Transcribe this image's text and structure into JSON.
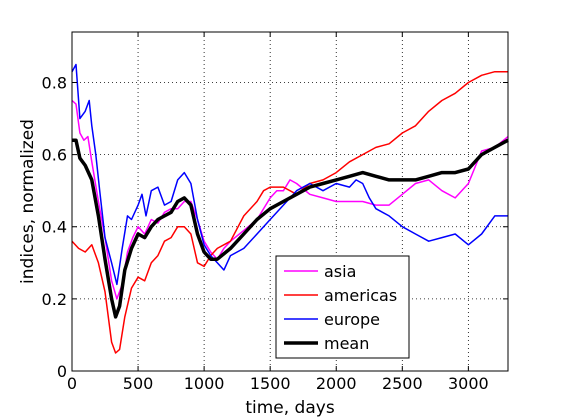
{
  "chart_data": {
    "type": "line",
    "title": "",
    "xlabel": "time, days",
    "ylabel": "indices, normalized",
    "xlim": [
      0,
      3300
    ],
    "ylim": [
      0,
      0.94
    ],
    "xticks": [
      0,
      500,
      1000,
      1500,
      2000,
      2500,
      3000
    ],
    "yticks": [
      0,
      0.2,
      0.4,
      0.6,
      0.8
    ],
    "ytick_labels": [
      "0",
      "0.2",
      "0.4",
      "0.6",
      "0.8"
    ],
    "grid": true,
    "grid_style": "dotted",
    "legend_position": "lower-right",
    "series": [
      {
        "name": "asia",
        "color": "#ff00ff",
        "x": [
          0,
          30,
          60,
          90,
          120,
          150,
          200,
          250,
          300,
          340,
          380,
          420,
          460,
          500,
          550,
          600,
          650,
          700,
          750,
          800,
          850,
          900,
          950,
          1000,
          1050,
          1100,
          1150,
          1200,
          1300,
          1400,
          1500,
          1550,
          1600,
          1650,
          1700,
          1800,
          1900,
          2000,
          2100,
          2200,
          2300,
          2400,
          2500,
          2600,
          2700,
          2800,
          2900,
          3000,
          3100,
          3200,
          3300
        ],
        "y": [
          0.75,
          0.74,
          0.66,
          0.64,
          0.65,
          0.58,
          0.47,
          0.37,
          0.25,
          0.2,
          0.24,
          0.33,
          0.37,
          0.4,
          0.38,
          0.42,
          0.41,
          0.44,
          0.45,
          0.45,
          0.47,
          0.47,
          0.42,
          0.36,
          0.33,
          0.31,
          0.34,
          0.36,
          0.39,
          0.42,
          0.48,
          0.5,
          0.5,
          0.53,
          0.52,
          0.49,
          0.48,
          0.47,
          0.47,
          0.47,
          0.46,
          0.46,
          0.49,
          0.52,
          0.53,
          0.5,
          0.48,
          0.52,
          0.61,
          0.62,
          0.65
        ]
      },
      {
        "name": "americas",
        "color": "#ff0000",
        "x": [
          0,
          50,
          100,
          150,
          200,
          250,
          300,
          330,
          360,
          400,
          450,
          500,
          550,
          600,
          650,
          700,
          750,
          800,
          850,
          900,
          950,
          1000,
          1050,
          1100,
          1200,
          1300,
          1400,
          1450,
          1500,
          1600,
          1700,
          1800,
          1900,
          2000,
          2100,
          2200,
          2300,
          2400,
          2500,
          2600,
          2700,
          2800,
          2900,
          3000,
          3100,
          3200,
          3300
        ],
        "y": [
          0.36,
          0.34,
          0.33,
          0.35,
          0.3,
          0.22,
          0.08,
          0.05,
          0.06,
          0.15,
          0.23,
          0.26,
          0.25,
          0.3,
          0.32,
          0.36,
          0.37,
          0.4,
          0.4,
          0.38,
          0.3,
          0.29,
          0.32,
          0.34,
          0.36,
          0.43,
          0.47,
          0.5,
          0.51,
          0.51,
          0.49,
          0.52,
          0.53,
          0.55,
          0.58,
          0.6,
          0.62,
          0.63,
          0.66,
          0.68,
          0.72,
          0.75,
          0.77,
          0.8,
          0.82,
          0.83,
          0.83
        ]
      },
      {
        "name": "europe",
        "color": "#0000ff",
        "x": [
          0,
          30,
          60,
          100,
          130,
          150,
          180,
          210,
          250,
          300,
          340,
          380,
          420,
          450,
          500,
          530,
          560,
          600,
          650,
          700,
          750,
          800,
          850,
          900,
          950,
          1000,
          1050,
          1100,
          1150,
          1200,
          1300,
          1400,
          1500,
          1600,
          1700,
          1800,
          1900,
          2000,
          2100,
          2150,
          2200,
          2250,
          2300,
          2400,
          2500,
          2600,
          2700,
          2800,
          2900,
          3000,
          3100,
          3200,
          3300
        ],
        "y": [
          0.83,
          0.85,
          0.7,
          0.72,
          0.75,
          0.68,
          0.6,
          0.5,
          0.37,
          0.3,
          0.24,
          0.34,
          0.43,
          0.42,
          0.46,
          0.49,
          0.43,
          0.5,
          0.51,
          0.46,
          0.47,
          0.53,
          0.55,
          0.52,
          0.42,
          0.35,
          0.32,
          0.3,
          0.28,
          0.32,
          0.34,
          0.38,
          0.42,
          0.46,
          0.5,
          0.52,
          0.5,
          0.52,
          0.51,
          0.53,
          0.52,
          0.48,
          0.45,
          0.43,
          0.4,
          0.38,
          0.36,
          0.37,
          0.38,
          0.35,
          0.38,
          0.43,
          0.43
        ]
      },
      {
        "name": "mean",
        "color": "#000000",
        "x": [
          0,
          30,
          60,
          100,
          150,
          200,
          250,
          300,
          330,
          360,
          400,
          450,
          500,
          550,
          600,
          650,
          700,
          750,
          800,
          850,
          900,
          950,
          1000,
          1050,
          1100,
          1200,
          1300,
          1400,
          1500,
          1600,
          1700,
          1800,
          1900,
          2000,
          2100,
          2200,
          2300,
          2400,
          2500,
          2600,
          2700,
          2800,
          2900,
          3000,
          3100,
          3200,
          3300
        ],
        "y": [
          0.64,
          0.64,
          0.59,
          0.57,
          0.53,
          0.43,
          0.31,
          0.2,
          0.15,
          0.18,
          0.28,
          0.34,
          0.38,
          0.37,
          0.4,
          0.42,
          0.43,
          0.44,
          0.47,
          0.48,
          0.46,
          0.38,
          0.33,
          0.31,
          0.31,
          0.34,
          0.38,
          0.42,
          0.45,
          0.47,
          0.49,
          0.51,
          0.52,
          0.53,
          0.54,
          0.55,
          0.54,
          0.53,
          0.53,
          0.53,
          0.54,
          0.55,
          0.55,
          0.56,
          0.6,
          0.62,
          0.64
        ]
      }
    ]
  }
}
